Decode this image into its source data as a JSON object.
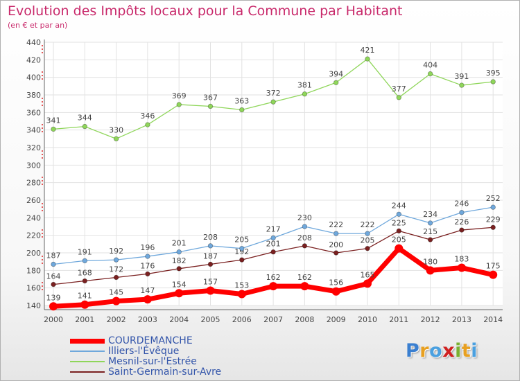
{
  "header": {
    "title": "Evolution des Impôts locaux pour la Commune par Habitant",
    "subtitle": "(en € et par an)"
  },
  "logo": {
    "text": "Proxiti"
  },
  "chart_data": {
    "type": "line",
    "categories": [
      "2000",
      "2001",
      "2002",
      "2003",
      "2004",
      "2005",
      "2006",
      "2007",
      "2008",
      "2009",
      "2010",
      "2011",
      "2012",
      "2013",
      "2014"
    ],
    "yticks": [
      140,
      160,
      180,
      200,
      220,
      240,
      260,
      280,
      300,
      320,
      340,
      360,
      380,
      400,
      420,
      440
    ],
    "ylim": [
      140,
      440
    ],
    "grid": true,
    "legend_position": "bottom-left",
    "series": [
      {
        "name": "COURDEMANCHE",
        "color": "#ff0000",
        "values": [
          139,
          141,
          145,
          147,
          154,
          157,
          153,
          162,
          162,
          156,
          165,
          205,
          180,
          183,
          175
        ]
      },
      {
        "name": "Illiers-l'Évêque",
        "color": "#6fa8dc",
        "values": [
          187,
          191,
          192,
          196,
          201,
          208,
          205,
          217,
          230,
          222,
          222,
          244,
          234,
          246,
          252
        ]
      },
      {
        "name": "Mesnil-sur-l'Estrée",
        "color": "#8fd65a",
        "values": [
          341,
          344,
          330,
          346,
          369,
          367,
          363,
          372,
          381,
          394,
          421,
          377,
          404,
          391,
          395
        ]
      },
      {
        "name": "Saint-Germain-sur-Avre",
        "color": "#7a2020",
        "values": [
          164,
          168,
          172,
          176,
          182,
          187,
          192,
          201,
          208,
          200,
          205,
          225,
          215,
          226,
          229
        ]
      }
    ]
  }
}
